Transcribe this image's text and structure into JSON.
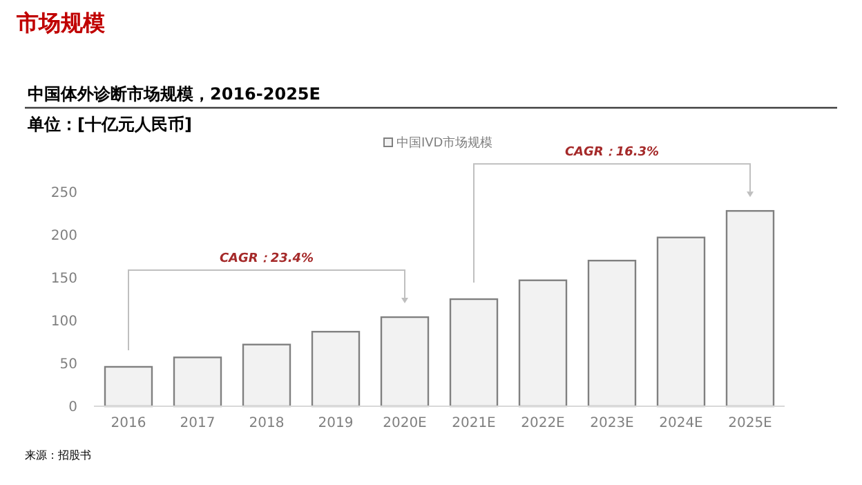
{
  "chart_data": {
    "type": "bar",
    "title": "中国体外诊断市场规模，2016-2025E",
    "subtitle": "单位：[十亿元人民币]",
    "categories": [
      "2016",
      "2017",
      "2018",
      "2019",
      "2020E",
      "2021E",
      "2022E",
      "2023E",
      "2024E",
      "2025E"
    ],
    "series": [
      {
        "name": "中国IVD市场规模",
        "color": "#f2f2f2",
        "values": [
          46,
          57,
          72,
          87,
          104,
          125,
          147,
          170,
          197,
          228
        ]
      }
    ],
    "ylim": [
      0,
      250
    ],
    "yticks": [
      0,
      50,
      100,
      150,
      200,
      250
    ],
    "grid": false,
    "legend": "top",
    "annotations": [
      "市场规模",
      "CAGR：23.4%",
      "CAGR：16.3%",
      "来源：招股书"
    ]
  }
}
